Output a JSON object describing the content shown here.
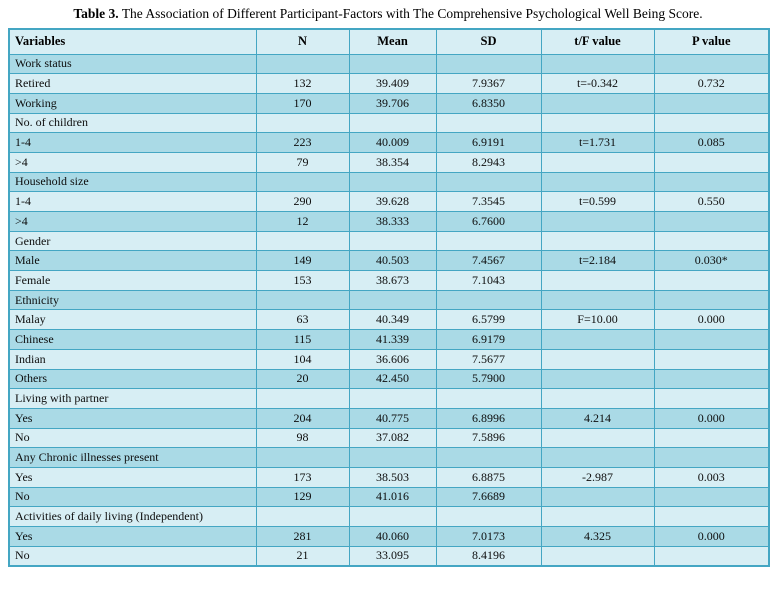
{
  "title": {
    "prefix": "Table 3.",
    "text": "The Association of Different Participant-Factors with The Comprehensive Psychological Well Being Score."
  },
  "columns": [
    "Variables",
    "N",
    "Mean",
    "SD",
    "t/F value",
    "P value"
  ],
  "rows": [
    {
      "type": "group",
      "cells": [
        "Work status",
        "",
        "",
        "",
        "",
        ""
      ]
    },
    {
      "type": "data",
      "cells": [
        "Retired",
        "132",
        "39.409",
        "7.9367",
        "t=-0.342",
        "0.732"
      ]
    },
    {
      "type": "data",
      "cells": [
        "Working",
        "170",
        "39.706",
        "6.8350",
        "",
        ""
      ]
    },
    {
      "type": "group",
      "cells": [
        "No. of children",
        "",
        "",
        "",
        "",
        ""
      ]
    },
    {
      "type": "data",
      "cells": [
        "1-4",
        "223",
        "40.009",
        "6.9191",
        "t=1.731",
        "0.085"
      ]
    },
    {
      "type": "data",
      "cells": [
        ">4",
        "79",
        "38.354",
        "8.2943",
        "",
        ""
      ]
    },
    {
      "type": "group",
      "cells": [
        "Household size",
        "",
        "",
        "",
        "",
        ""
      ]
    },
    {
      "type": "data",
      "cells": [
        "1-4",
        "290",
        "39.628",
        "7.3545",
        "t=0.599",
        "0.550"
      ]
    },
    {
      "type": "data",
      "cells": [
        ">4",
        "12",
        "38.333",
        "6.7600",
        "",
        ""
      ]
    },
    {
      "type": "group",
      "cells": [
        "Gender",
        "",
        "",
        "",
        "",
        ""
      ]
    },
    {
      "type": "data",
      "cells": [
        "Male",
        "149",
        "40.503",
        "7.4567",
        "t=2.184",
        "0.030*"
      ]
    },
    {
      "type": "data",
      "cells": [
        "Female",
        "153",
        "38.673",
        "7.1043",
        "",
        ""
      ]
    },
    {
      "type": "group",
      "cells": [
        "Ethnicity",
        "",
        "",
        "",
        "",
        ""
      ]
    },
    {
      "type": "data",
      "cells": [
        "Malay",
        "63",
        "40.349",
        "6.5799",
        "F=10.00",
        "0.000"
      ]
    },
    {
      "type": "data",
      "cells": [
        "Chinese",
        "115",
        "41.339",
        "6.9179",
        "",
        ""
      ]
    },
    {
      "type": "data",
      "cells": [
        "Indian",
        "104",
        "36.606",
        "7.5677",
        "",
        ""
      ]
    },
    {
      "type": "data",
      "cells": [
        "Others",
        "20",
        "42.450",
        "5.7900",
        "",
        ""
      ]
    },
    {
      "type": "group",
      "cells": [
        "Living with partner",
        "",
        "",
        "",
        "",
        ""
      ]
    },
    {
      "type": "data",
      "cells": [
        "Yes",
        "204",
        "40.775",
        "6.8996",
        "4.214",
        "0.000"
      ]
    },
    {
      "type": "data",
      "cells": [
        "No",
        "98",
        "37.082",
        "7.5896",
        "",
        ""
      ]
    },
    {
      "type": "group",
      "cells": [
        "Any Chronic illnesses present",
        "",
        "",
        "",
        "",
        ""
      ]
    },
    {
      "type": "data",
      "cells": [
        "Yes",
        "173",
        "38.503",
        "6.8875",
        "-2.987",
        "0.003"
      ]
    },
    {
      "type": "data",
      "cells": [
        "No",
        "129",
        "41.016",
        "7.6689",
        "",
        ""
      ]
    },
    {
      "type": "group",
      "cells": [
        "Activities of daily living (Independent)",
        "",
        "",
        "",
        "",
        ""
      ]
    },
    {
      "type": "data",
      "cells": [
        "Yes",
        "281",
        "40.060",
        "7.0173",
        "4.325",
        "0.000"
      ]
    },
    {
      "type": "data",
      "cells": [
        "No",
        "21",
        "33.095",
        "8.4196",
        "",
        ""
      ]
    }
  ],
  "colors": {
    "row_shade_dark": "#aadae6",
    "row_shade_light": "#d7eef4",
    "grid_border": "#44a6c3",
    "page_background": "#ffffff",
    "text": "#0d0d0d"
  }
}
